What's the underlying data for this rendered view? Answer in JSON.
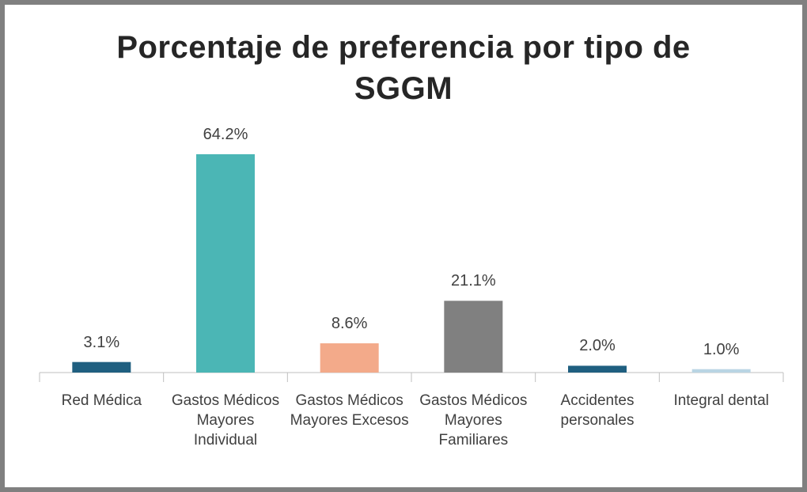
{
  "chart_data": {
    "type": "bar",
    "title": "Porcentaje de preferencia por tipo de SGGM",
    "categories": [
      "Red Médica",
      "Gastos Médicos Mayores Individual",
      "Gastos Médicos Mayores Excesos",
      "Gastos Médicos Mayores Familiares",
      "Accidentes personales",
      "Integral dental"
    ],
    "values": [
      3.1,
      64.2,
      8.6,
      21.1,
      2.0,
      1.0
    ],
    "value_labels": [
      "3.1%",
      "64.2%",
      "8.6%",
      "21.1%",
      "2.0%",
      "1.0%"
    ],
    "colors": [
      "#1f5f80",
      "#4bb6b5",
      "#f3aa8a",
      "#808080",
      "#1f5f80",
      "#b9d5e4"
    ]
  }
}
